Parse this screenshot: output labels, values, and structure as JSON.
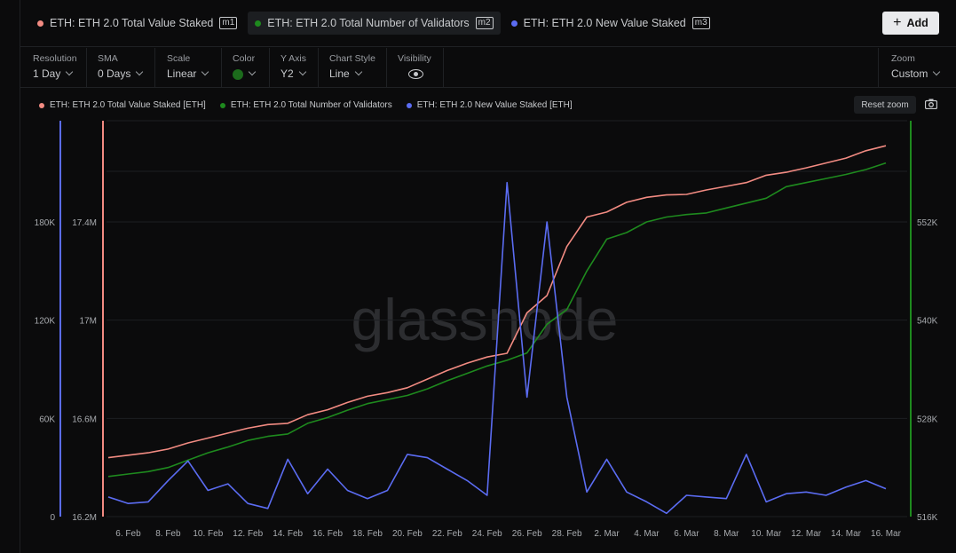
{
  "tabs": [
    {
      "label": "ETH: ETH 2.0 Total Value Staked",
      "tag": "m1",
      "color": "#f28b82"
    },
    {
      "label": "ETH: ETH 2.0 Total Number of Validators",
      "tag": "m2",
      "color": "#1e8a1e"
    },
    {
      "label": "ETH: ETH 2.0 New Value Staked",
      "tag": "m3",
      "color": "#5b6cf2"
    }
  ],
  "add_button": {
    "label": "Add"
  },
  "controls": {
    "resolution": {
      "label": "Resolution",
      "value": "1 Day"
    },
    "sma": {
      "label": "SMA",
      "value": "0 Days"
    },
    "scale": {
      "label": "Scale",
      "value": "Linear"
    },
    "color": {
      "label": "Color"
    },
    "y_axis": {
      "label": "Y Axis",
      "value": "Y2"
    },
    "chart_style": {
      "label": "Chart Style",
      "value": "Line"
    },
    "visibility": {
      "label": "Visibility"
    },
    "zoom": {
      "label": "Zoom",
      "value": "Custom"
    }
  },
  "legend": [
    {
      "label": "ETH: ETH 2.0 Total Value Staked [ETH]",
      "color": "#f28b82"
    },
    {
      "label": "ETH: ETH 2.0 Total Number of Validators",
      "color": "#1e8a1e"
    },
    {
      "label": "ETH: ETH 2.0 New Value Staked [ETH]",
      "color": "#5b6cf2"
    }
  ],
  "reset_zoom": "Reset zoom",
  "watermark": "glassnode",
  "chart_data": {
    "type": "line",
    "x_ticks": [
      "6. Feb",
      "8. Feb",
      "10. Feb",
      "12. Feb",
      "14. Feb",
      "16. Feb",
      "18. Feb",
      "20. Feb",
      "22. Feb",
      "24. Feb",
      "26. Feb",
      "28. Feb",
      "2. Mar",
      "4. Mar",
      "6. Mar",
      "8. Mar",
      "10. Mar",
      "12. Mar",
      "14. Mar",
      "16. Mar"
    ],
    "x_day_range": [
      0,
      39
    ],
    "axes": {
      "new_value": {
        "ticks": [
          "0",
          "60K",
          "120K",
          "180K"
        ],
        "values": [
          0,
          60000,
          120000,
          180000
        ],
        "ylim": [
          0,
          180000
        ],
        "color": "#5b6cf2"
      },
      "total_value": {
        "ticks": [
          "16.2M",
          "16.6M",
          "17M",
          "17.4M"
        ],
        "values": [
          16200000,
          16600000,
          17000000,
          17400000
        ],
        "ylim": [
          16200000,
          17400000
        ],
        "color": "#f28b82"
      },
      "validators": {
        "ticks": [
          "516K",
          "528K",
          "540K",
          "552K"
        ],
        "values": [
          516000,
          528000,
          540000,
          552000
        ],
        "ylim": [
          516000,
          552000
        ],
        "color": "#1e8a1e"
      }
    },
    "series": [
      {
        "name": "ETH: ETH 2.0 Total Value Staked [ETH]",
        "axis": "total_value",
        "color": "#f28b82",
        "values": [
          16440000,
          16450000,
          16460000,
          16475000,
          16500000,
          16520000,
          16540000,
          16560000,
          16575000,
          16580000,
          16615000,
          16635000,
          16665000,
          16690000,
          16705000,
          16725000,
          16760000,
          16795000,
          16825000,
          16850000,
          16865000,
          17030000,
          17100000,
          17300000,
          17420000,
          17440000,
          17480000,
          17500000,
          17510000,
          17512000,
          17530000,
          17545000,
          17560000,
          17590000,
          17602000,
          17620000,
          17640000,
          17660000,
          17690000,
          17710000
        ]
      },
      {
        "name": "ETH: ETH 2.0 Total Number of Validators",
        "axis": "validators",
        "color": "#1e8a1e",
        "values": [
          520900,
          521200,
          521500,
          522000,
          522900,
          523800,
          524500,
          525300,
          525800,
          526100,
          527400,
          528100,
          529000,
          529800,
          530300,
          530800,
          531600,
          532600,
          533500,
          534400,
          535100,
          536000,
          539500,
          541300,
          546000,
          549900,
          550700,
          552000,
          552600,
          552900,
          553100,
          553700,
          554300,
          554900,
          556300,
          556800,
          557300,
          557800,
          558400,
          559200
        ]
      },
      {
        "name": "ETH: ETH 2.0 New Value Staked [ETH]",
        "axis": "new_value",
        "color": "#5b6cf2",
        "values": [
          12000,
          8000,
          9000,
          22000,
          34000,
          16000,
          20000,
          8000,
          5000,
          35000,
          14000,
          29000,
          16000,
          11000,
          16000,
          38000,
          36000,
          29000,
          22000,
          13000,
          204000,
          73000,
          180000,
          73000,
          15000,
          35000,
          15000,
          9000,
          2000,
          13000,
          12000,
          11000,
          38000,
          9000,
          14000,
          15000,
          13000,
          18000,
          22000,
          17000
        ]
      }
    ]
  }
}
